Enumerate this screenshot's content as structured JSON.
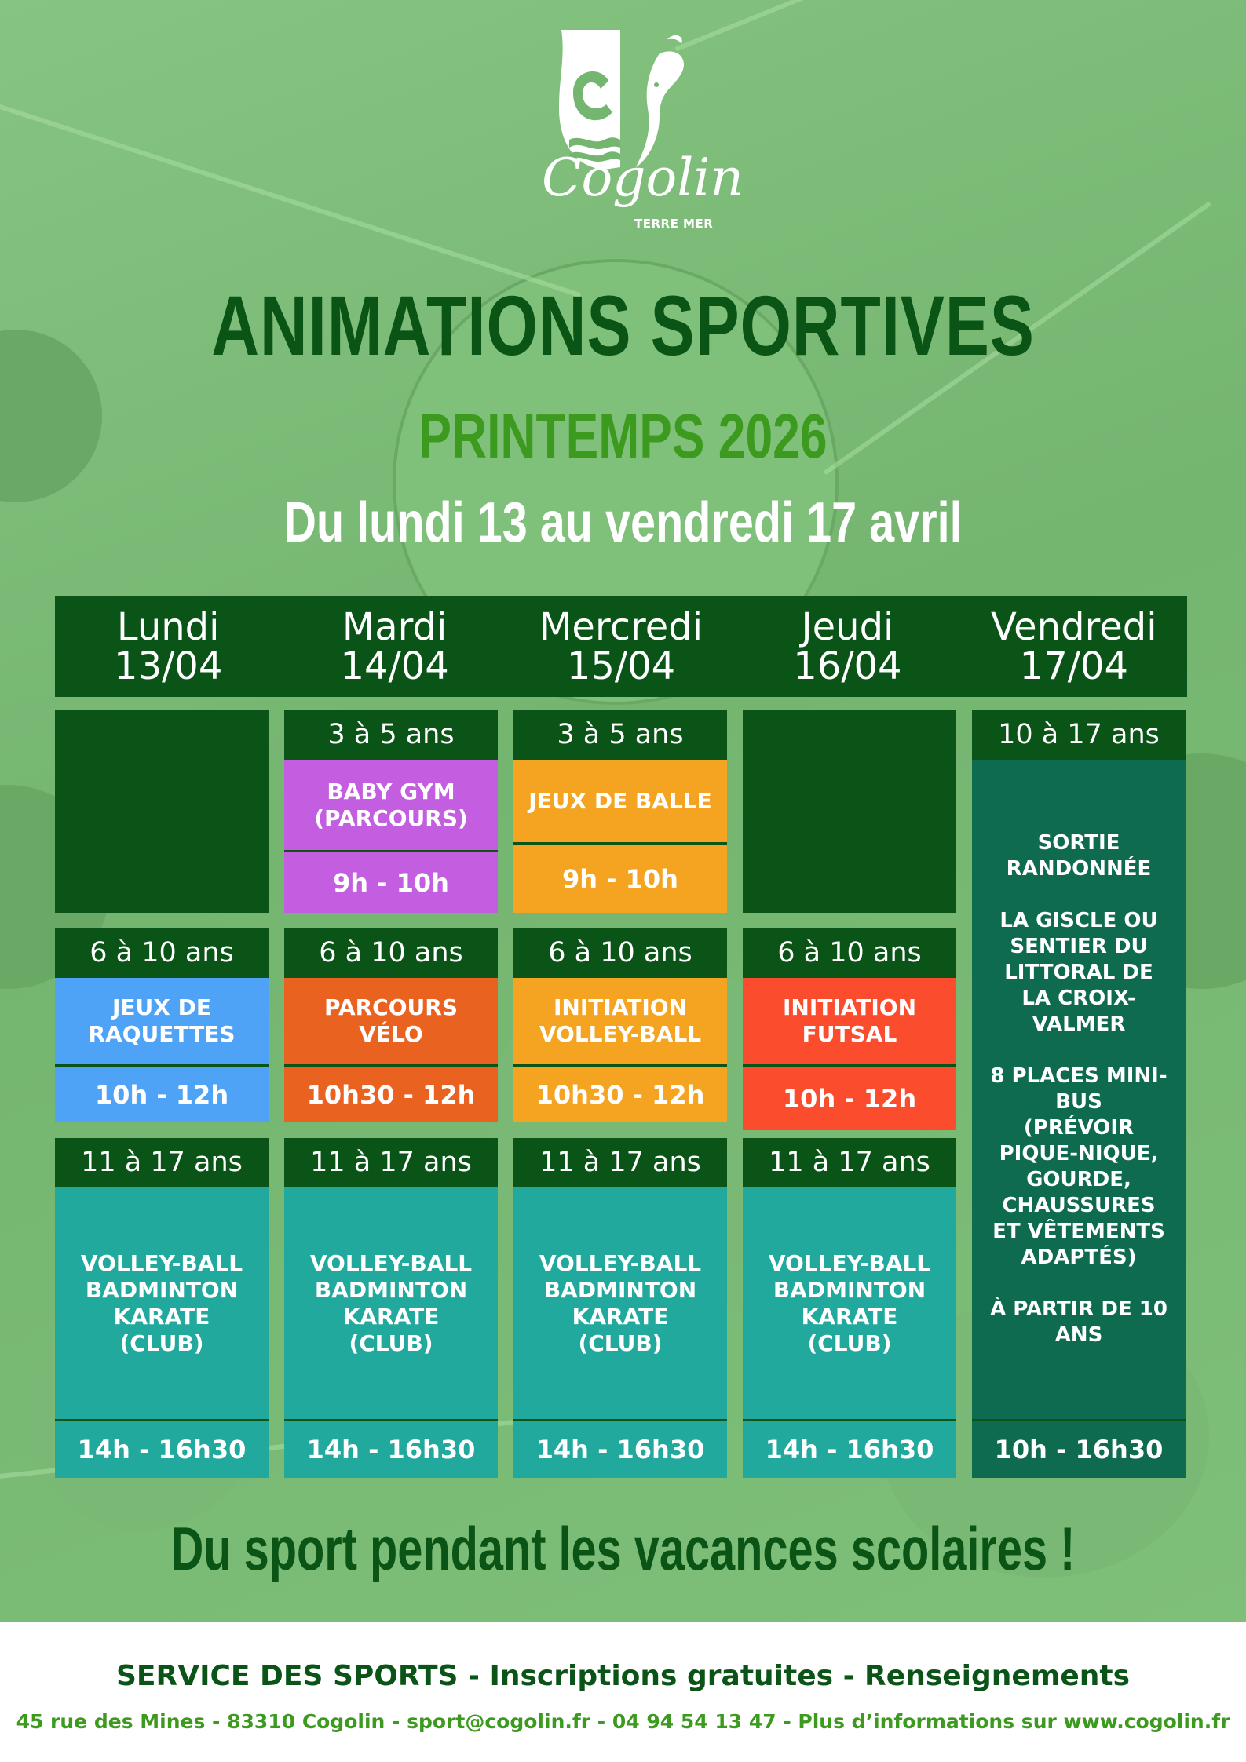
{
  "logo": {
    "name": "Cogolin",
    "tagline": "TERRE MER"
  },
  "title": "ANIMATIONS SPORTIVES",
  "subtitle": "PRINTEMPS 2026",
  "dates": "Du lundi 13 au vendredi 17 avril",
  "days": [
    {
      "name": "Lundi",
      "date": "13/04"
    },
    {
      "name": "Mardi",
      "date": "14/04"
    },
    {
      "name": "Mercredi",
      "date": "15/04"
    },
    {
      "name": "Jeudi",
      "date": "16/04"
    },
    {
      "name": "Vendredi",
      "date": "17/04"
    }
  ],
  "schedule": {
    "tue_3_5": {
      "age": "3 à 5 ans",
      "activity": "BABY GYM\n(PARCOURS)",
      "time": "9h - 10h",
      "color": "#c45ee0"
    },
    "wed_3_5": {
      "age": "3 à 5 ans",
      "activity": "JEUX DE BALLE",
      "time": "9h - 10h",
      "color": "#f5a421"
    },
    "mon_6_10": {
      "age": "6 à 10 ans",
      "activity": "JEUX DE\nRAQUETTES",
      "time": "10h - 12h",
      "color": "#4fa3f7"
    },
    "tue_6_10": {
      "age": "6 à 10 ans",
      "activity": "PARCOURS\nVÉLO",
      "time": "10h30 - 12h",
      "color": "#ea6220"
    },
    "wed_6_10": {
      "age": "6 à 10 ans",
      "activity": "INITIATION\nVOLLEY-BALL",
      "time": "10h30 - 12h",
      "color": "#f5a421"
    },
    "thu_6_10": {
      "age": "6 à 10 ans",
      "activity": "INITIATION\nFUTSAL",
      "time": "10h - 12h",
      "color": "#fb4d2d"
    },
    "mon_11_17": {
      "age": "11 à 17 ans",
      "activity": "VOLLEY-BALL\nBADMINTON\nKARATE\n(CLUB)",
      "time": "14h - 16h30",
      "color": "#22a99e"
    },
    "tue_11_17": {
      "age": "11 à 17 ans",
      "activity": "VOLLEY-BALL\nBADMINTON\nKARATE\n(CLUB)",
      "time": "14h - 16h30",
      "color": "#22a99e"
    },
    "wed_11_17": {
      "age": "11 à 17 ans",
      "activity": "VOLLEY-BALL\nBADMINTON\nKARATE\n(CLUB)",
      "time": "14h - 16h30",
      "color": "#22a99e"
    },
    "thu_11_17": {
      "age": "11 à 17 ans",
      "activity": "VOLLEY-BALL\nBADMINTON\nKARATE\n(CLUB)",
      "time": "14h - 16h30",
      "color": "#22a99e"
    },
    "fri_10_17": {
      "age": "10 à 17 ans",
      "activity": "SORTIE\nRANDONNÉE\n\nLA GISCLE OU\nSENTIER DU\nLITTORAL DE\nLA CROIX-\nVALMER\n\n8 PLACES MINI-\nBUS\n(PRÉVOIR\nPIQUE-NIQUE,\nGOURDE,\nCHAUSSURES\nET VÊTEMENTS\nADAPTÉS)\n\nÀ PARTIR DE 10\nANS",
      "time": "10h - 16h30",
      "color": "#0f6b4f"
    }
  },
  "slogan": "Du sport pendant les vacances scolaires !",
  "footer": {
    "line1": "SERVICE DES SPORTS - Inscriptions gratuites - Renseignements",
    "line2": "45 rue des Mines - 83310 Cogolin - sport@cogolin.fr - 04 94 54 13 47 - Plus d’informations sur www.cogolin.fr"
  }
}
